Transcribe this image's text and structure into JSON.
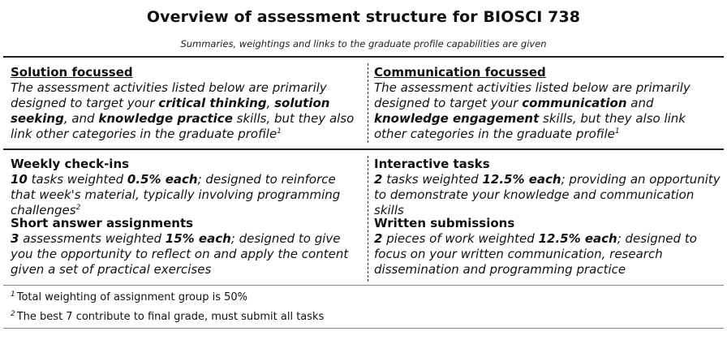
{
  "title": "Overview of assessment structure for BIOSCI 738",
  "subtitle": "Summaries, weightings and links to the graduate profile capabilities are given",
  "left_column": {
    "heading": "Solution focussed",
    "intro_a": "The assessment activities listed below are primarily designed to target your ",
    "kw1": "critical thinking",
    "sep1": ", ",
    "kw2": "solution seeking",
    "sep2": ", and ",
    "kw3": "knowledge practice",
    "intro_b": " skills, but they also link other categories in the graduate profile",
    "intro_sup": "1"
  },
  "right_column": {
    "heading": "Communication focussed",
    "intro_a": "The assessment activities listed below are primarily designed to target your ",
    "kw1": "communication",
    "sep1": " and ",
    "kw2": "knowledge engagement",
    "intro_b": " skills, but they also link other categories in the graduate profile",
    "intro_sup": "1"
  },
  "weekly": {
    "heading": "Weekly check-ins",
    "count": "10",
    "t1": " tasks weighted ",
    "weight": "0.5% each",
    "t2": "; designed to reinforce that week's material, typically involving programming challenges",
    "sup": "2"
  },
  "interactive": {
    "heading": "Interactive tasks",
    "count": "2",
    "t1": " tasks weighted ",
    "weight": "12.5% each",
    "t2": "; providing an opportunity to demonstrate your knowledge and communication skills"
  },
  "short_answer": {
    "heading": "Short answer assignments",
    "count": "3",
    "t1": " assessments weighted ",
    "weight": "15% each",
    "t2": "; designed to give you the opportunity to reflect on and apply the content given a set of practical exercises"
  },
  "written": {
    "heading": "Written submissions",
    "count": "2",
    "t1": " pieces of work weighted ",
    "weight": "12.5% each",
    "t2": "; designed to focus on your written communication, research dissemination and programming practice"
  },
  "footnotes": [
    {
      "mark": "1",
      "text": "Total weighting of assignment group is 50%"
    },
    {
      "mark": "2",
      "text": "The best 7 contribute to final grade, must submit all tasks"
    }
  ]
}
